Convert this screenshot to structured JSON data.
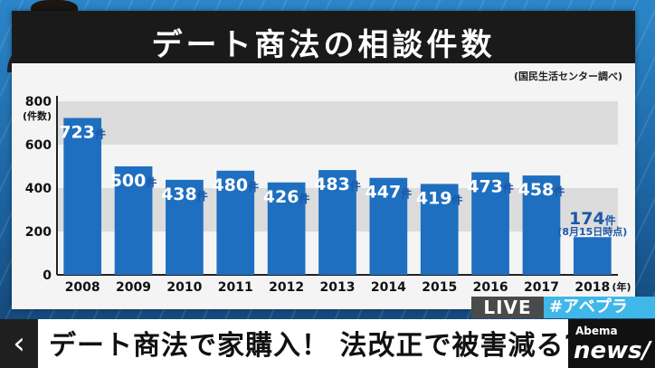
{
  "title": "デート商法の相談件数",
  "source": "(国民生活センター調べ)",
  "chart_data": {
    "type": "bar",
    "title": "デート商法の相談件数",
    "categories": [
      "2008",
      "2009",
      "2010",
      "2011",
      "2012",
      "2013",
      "2014",
      "2015",
      "2016",
      "2017",
      "2018"
    ],
    "values": [
      723,
      500,
      438,
      480,
      426,
      483,
      447,
      419,
      473,
      458,
      174
    ],
    "data_labels": [
      "723",
      "500",
      "438",
      "480",
      "426",
      "483",
      "447",
      "419",
      "473",
      "458",
      "174"
    ],
    "value_unit": "件",
    "last_note": "(8月15日時点)",
    "x_unit": "(年)",
    "ylabel": "(件数)",
    "ylim": [
      0,
      800
    ],
    "yticks": [
      0,
      200,
      400,
      600,
      800
    ],
    "grid": "alternating bands",
    "bar_color": "#1f6fc0"
  },
  "overlay": {
    "live": "LIVE",
    "hashtag": "#アベプラ",
    "headline": "デート商法で家購入！ 法改正で被害減る?",
    "back_icon": "‹",
    "logo_top": "Abema",
    "logo_main": "news/"
  }
}
